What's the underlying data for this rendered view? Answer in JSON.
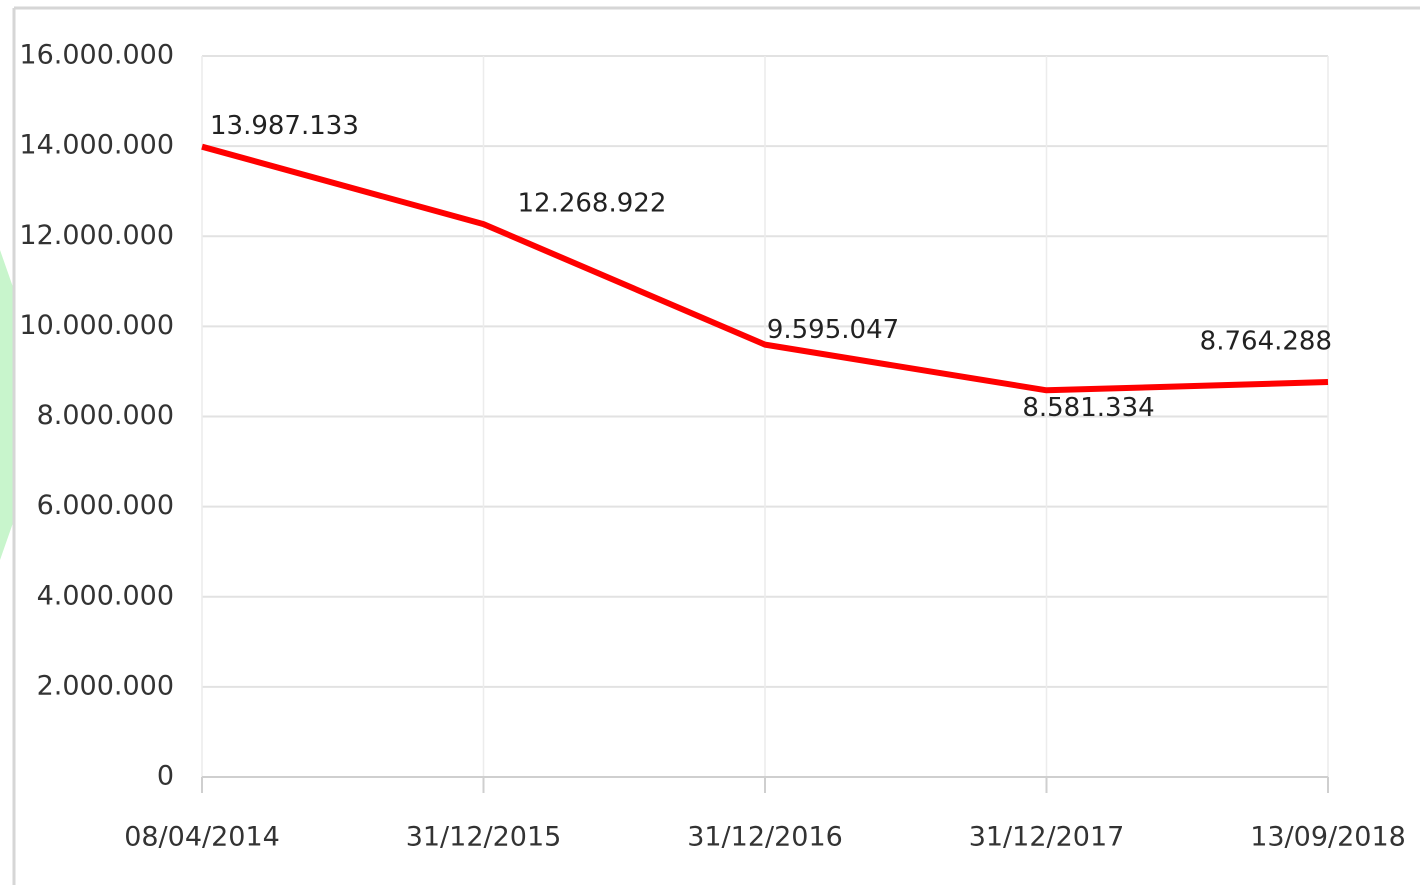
{
  "chart_data": {
    "type": "line",
    "categories": [
      "08/04/2014",
      "31/12/2015",
      "31/12/2016",
      "31/12/2017",
      "13/09/2018"
    ],
    "series": [
      {
        "name": null,
        "color": "#ff0000",
        "values": [
          13987133,
          12268922,
          9595047,
          8581334,
          8764288
        ],
        "value_labels": [
          "13.987.133",
          "12.268.922",
          "9.595.047",
          "8.581.334",
          "8.764.288"
        ]
      }
    ],
    "ylim": [
      0,
      16000000
    ],
    "yticks": [
      0,
      {
        "value": 2000000,
        "label": "2.000.000"
      },
      {
        "value": 4000000,
        "label": "4.000.000"
      },
      {
        "value": 6000000,
        "label": "6.000.000"
      },
      {
        "value": 8000000,
        "label": "8.000.000"
      },
      {
        "value": 10000000,
        "label": "10.000.000"
      },
      {
        "value": 12000000,
        "label": "12.000.000"
      },
      {
        "value": 14000000,
        "label": "14.000.000"
      },
      {
        "value": 16000000,
        "label": "16.000.000"
      }
    ],
    "grid": true
  }
}
